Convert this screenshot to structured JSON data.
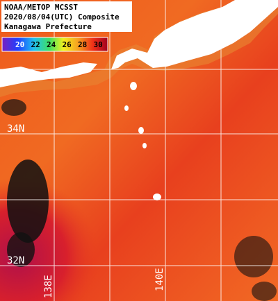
{
  "header": {
    "lines": [
      "NOAA/METOP MCSST",
      "2020/08/04(UTC) Composite",
      "Kanagawa Prefecture"
    ]
  },
  "legend": {
    "labels": [
      "20",
      "22",
      "24",
      "26",
      "28",
      "30"
    ]
  },
  "grid_labels": {
    "latitudes": [
      "34N",
      "32N"
    ],
    "longitudes": [
      "138E",
      "140E"
    ]
  }
}
